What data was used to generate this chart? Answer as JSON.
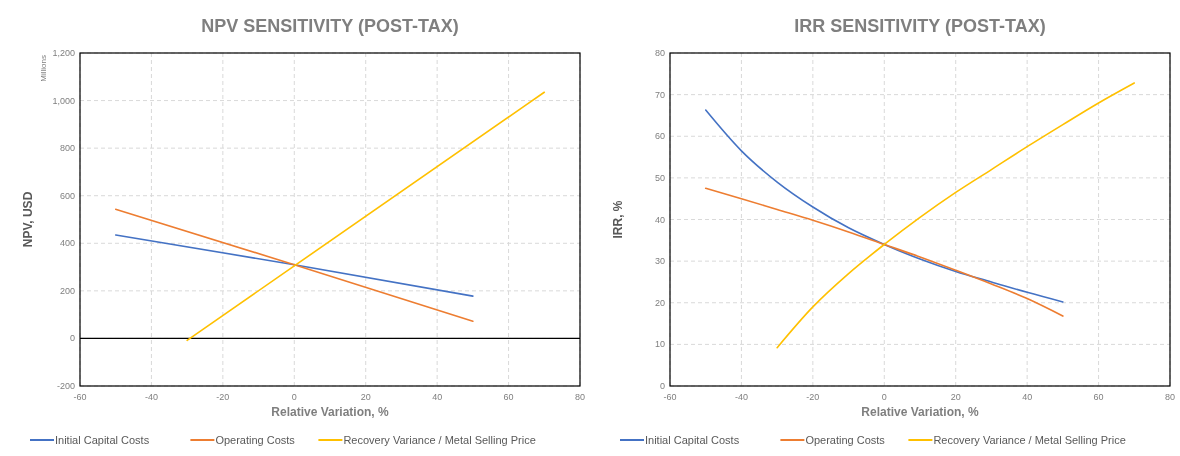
{
  "chart_data": [
    {
      "type": "line",
      "title": "NPV SENSITIVITY (POST-TAX)",
      "xlabel": "Relative Variation, %",
      "ylabel": "NPV, USD",
      "annotations": [
        "Millions"
      ],
      "xlim": [
        -60,
        80
      ],
      "xticks": [
        -60,
        -40,
        -20,
        0,
        20,
        40,
        60,
        80
      ],
      "ylim": [
        -200,
        1200
      ],
      "yticks": [
        -200,
        0,
        200,
        400,
        600,
        800,
        {
          "value": 1000,
          "label": "1,000"
        },
        {
          "value": 1200,
          "label": "1,200"
        }
      ],
      "grid": true,
      "legend": "bottom",
      "ref_lines": [
        {
          "axis": "y",
          "value": 0,
          "color": "#000000"
        }
      ],
      "series": [
        {
          "name": "Initial Capital Costs",
          "color": "#4472c4",
          "x": [
            -50,
            0,
            50
          ],
          "values": [
            435,
            310,
            178
          ]
        },
        {
          "name": "Operating Costs",
          "color": "#ed7d31",
          "x": [
            -50,
            0,
            50
          ],
          "values": [
            543,
            310,
            72
          ]
        },
        {
          "name": "Recovery Variance / Metal Selling Price",
          "color": "#ffc000",
          "x": [
            -30,
            0,
            70
          ],
          "values": [
            -8,
            305,
            1035
          ]
        }
      ]
    },
    {
      "type": "line",
      "title": "IRR SENSITIVITY (POST-TAX)",
      "xlabel": "Relative Variation, %",
      "ylabel": "IRR, %",
      "xlim": [
        -60,
        80
      ],
      "xticks": [
        -60,
        -40,
        -20,
        0,
        20,
        40,
        60,
        80
      ],
      "ylim": [
        0,
        80
      ],
      "yticks": [
        0,
        10,
        20,
        30,
        40,
        50,
        60,
        70,
        80
      ],
      "grid": true,
      "legend": "bottom",
      "series": [
        {
          "name": "Initial Capital Costs",
          "color": "#4472c4",
          "x": [
            -50,
            -40,
            -30,
            -20,
            -10,
            0,
            10,
            20,
            30,
            40,
            50
          ],
          "values": [
            66.3,
            56.5,
            49,
            43,
            38,
            34,
            30.5,
            27.5,
            25,
            22.5,
            20.2
          ]
        },
        {
          "name": "Operating Costs",
          "color": "#ed7d31",
          "x": [
            -50,
            -40,
            -30,
            -20,
            -10,
            0,
            10,
            20,
            30,
            40,
            50
          ],
          "values": [
            47.5,
            45,
            42.4,
            39.8,
            37,
            34,
            31,
            27.8,
            24.5,
            21,
            16.8
          ]
        },
        {
          "name": "Recovery Variance / Metal Selling Price",
          "color": "#ffc000",
          "x": [
            -30,
            -20,
            -10,
            0,
            10,
            20,
            30,
            40,
            50,
            60,
            70
          ],
          "values": [
            9.2,
            19,
            27,
            34,
            40.5,
            46.5,
            52,
            57.5,
            62.8,
            68,
            72.8
          ]
        }
      ]
    }
  ]
}
